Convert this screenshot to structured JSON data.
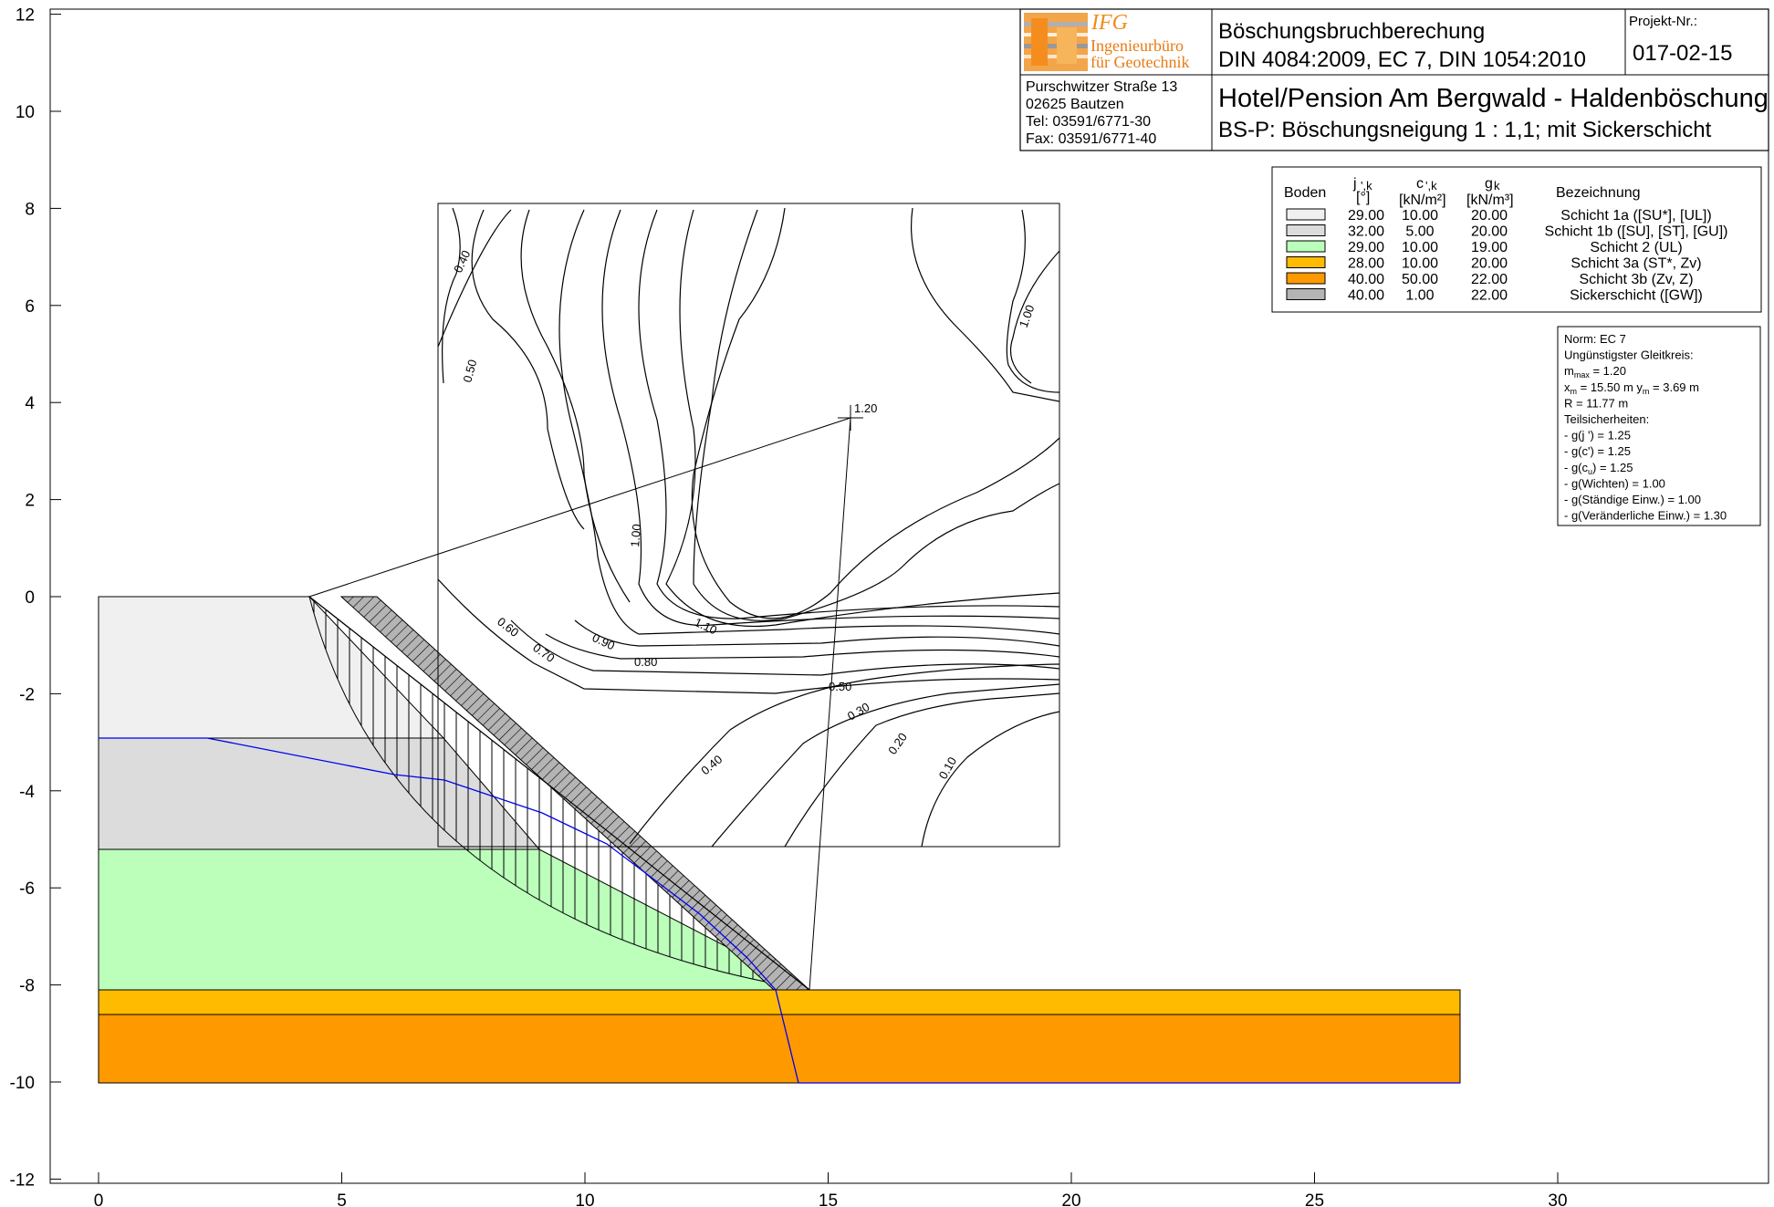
{
  "chart_data": {
    "type": "slope-stability-cross-section",
    "xlim": [
      0,
      30
    ],
    "ylim": [
      -12,
      12
    ],
    "x_ticks": [
      0,
      5,
      10,
      15,
      20,
      25,
      30
    ],
    "y_ticks": [
      12,
      10,
      8,
      6,
      4,
      2,
      0,
      -2,
      -4,
      -6,
      -8,
      -10,
      -12
    ],
    "x_tick_labels": [
      "0",
      "5",
      "10",
      "15",
      "20",
      "25",
      "30"
    ],
    "y_tick_labels": [
      "12",
      "10",
      "8",
      "6",
      "4",
      "2",
      "0",
      "-2",
      "-4",
      "-6",
      "-8",
      "-10",
      "-12"
    ],
    "soil_layers": [
      {
        "name": "Schicht 1a",
        "top": 0,
        "bottom": -2.9,
        "color": "#f0f0f0"
      },
      {
        "name": "Schicht 1b",
        "top": -2.9,
        "bottom": -5.2,
        "color": "#dcdcdc"
      },
      {
        "name": "Schicht 2",
        "top": -5.2,
        "bottom": -8.1,
        "color": "#bbffbb"
      },
      {
        "name": "Schicht 3a",
        "top": -8.1,
        "bottom": -8.6,
        "color": "#ffbb00"
      },
      {
        "name": "Schicht 3b",
        "top": -8.6,
        "bottom": -10.0,
        "color": "#ff9900"
      }
    ],
    "slope": {
      "crest": [
        4.3,
        0
      ],
      "toe": [
        14.6,
        -8.1
      ],
      "drain_top_outer": [
        5.7,
        0
      ]
    },
    "water_table": [
      [
        0,
        -2.9
      ],
      [
        2.2,
        -2.9
      ],
      [
        5.0,
        -3.3
      ],
      [
        7.2,
        -3.7
      ],
      [
        9.2,
        -4.4
      ],
      [
        10.7,
        -5.2
      ],
      [
        12.1,
        -6.5
      ],
      [
        13.2,
        -7.6
      ],
      [
        13.9,
        -8.1
      ],
      [
        14.4,
        -10.0
      ],
      [
        28,
        -10.0
      ]
    ],
    "critical_circle": {
      "xm": 15.5,
      "ym": 3.69,
      "R": 11.77,
      "mu_max": "1.20",
      "center_label": "1.20"
    },
    "grid_box": {
      "x": [
        7.0,
        19.8
      ],
      "y": [
        -5.15,
        8.1
      ]
    },
    "contour_labels": [
      "0.40",
      "0.50",
      "1.00",
      "1.00",
      "1.10",
      "0.90",
      "0.80",
      "0.70",
      "0.60",
      "0.50",
      "0.40",
      "0.30",
      "0.20",
      "0.10"
    ]
  },
  "title_block": {
    "company": "IFG",
    "company_sub1": "Ingenieurbüro",
    "company_sub2": "für Geotechnik",
    "title1": "Böschungsbruchberechung",
    "title2": "DIN 4084:2009, EC 7, DIN 1054:2010",
    "projekt_label": "Projekt-Nr.:",
    "projekt_nr": "017-02-15",
    "address": [
      "Purschwitzer Straße 13",
      "02625 Bautzen",
      "Tel:  03591/6771-30",
      "Fax: 03591/6771-40"
    ],
    "project_title": "Hotel/Pension Am Bergwald - Haldenböschung",
    "project_sub": "BS-P: Böschungsneigung 1 : 1,1; mit Sickerschicht"
  },
  "legend": {
    "col_boden": "Boden",
    "col_phi": "j",
    "col_phi_sub": "',k",
    "col_phi_unit": "[°]",
    "col_c": "c",
    "col_c_sub": "',k",
    "col_c_unit": "[kN/m²]",
    "col_g": "g",
    "col_g_sub": "k",
    "col_g_unit": "[kN/m³]",
    "col_bez": "Bezeichnung",
    "rows": [
      {
        "color": "#f0f0f0",
        "phi": "29.00",
        "c": "10.00",
        "g": "20.00",
        "name": "Schicht 1a ([SU*], [UL])"
      },
      {
        "color": "#dcdcdc",
        "phi": "32.00",
        "c": "5.00",
        "g": "20.00",
        "name": "Schicht 1b ([SU], [ST], [GU])"
      },
      {
        "color": "#bbffbb",
        "phi": "29.00",
        "c": "10.00",
        "g": "19.00",
        "name": "Schicht 2 (UL)"
      },
      {
        "color": "#ffbb00",
        "phi": "28.00",
        "c": "10.00",
        "g": "20.00",
        "name": "Schicht 3a (ST*, Zv)"
      },
      {
        "color": "#ff9900",
        "phi": "40.00",
        "c": "50.00",
        "g": "22.00",
        "name": "Schicht 3b (Zv, Z)"
      },
      {
        "color": "#b4b4b4",
        "phi": "40.00",
        "c": "1.00",
        "g": "22.00",
        "name": "Sickerschicht ([GW])"
      }
    ]
  },
  "info": {
    "lines": [
      "Norm:  EC 7",
      "Ungünstigster Gleitkreis:",
      "m",
      "x",
      "R = 11.77 m",
      "Teilsicherheiten:",
      "- g(j ') = 1.25",
      "- g(c') = 1.25",
      "- g(c",
      "- g(Wichten) = 1.00",
      "- g(Ständige Einw.) = 1.00",
      "- g(Veränderliche Einw.) = 1.30"
    ],
    "mu_sub": "max",
    "mu_val": " = 1.20",
    "xm_sub": "m",
    "xm_val": " = 15.50 m   y",
    "ym_sub": "m",
    "ym_val": " = 3.69 m",
    "cu_sub": "u",
    "cu_val": ") = 1.25"
  }
}
